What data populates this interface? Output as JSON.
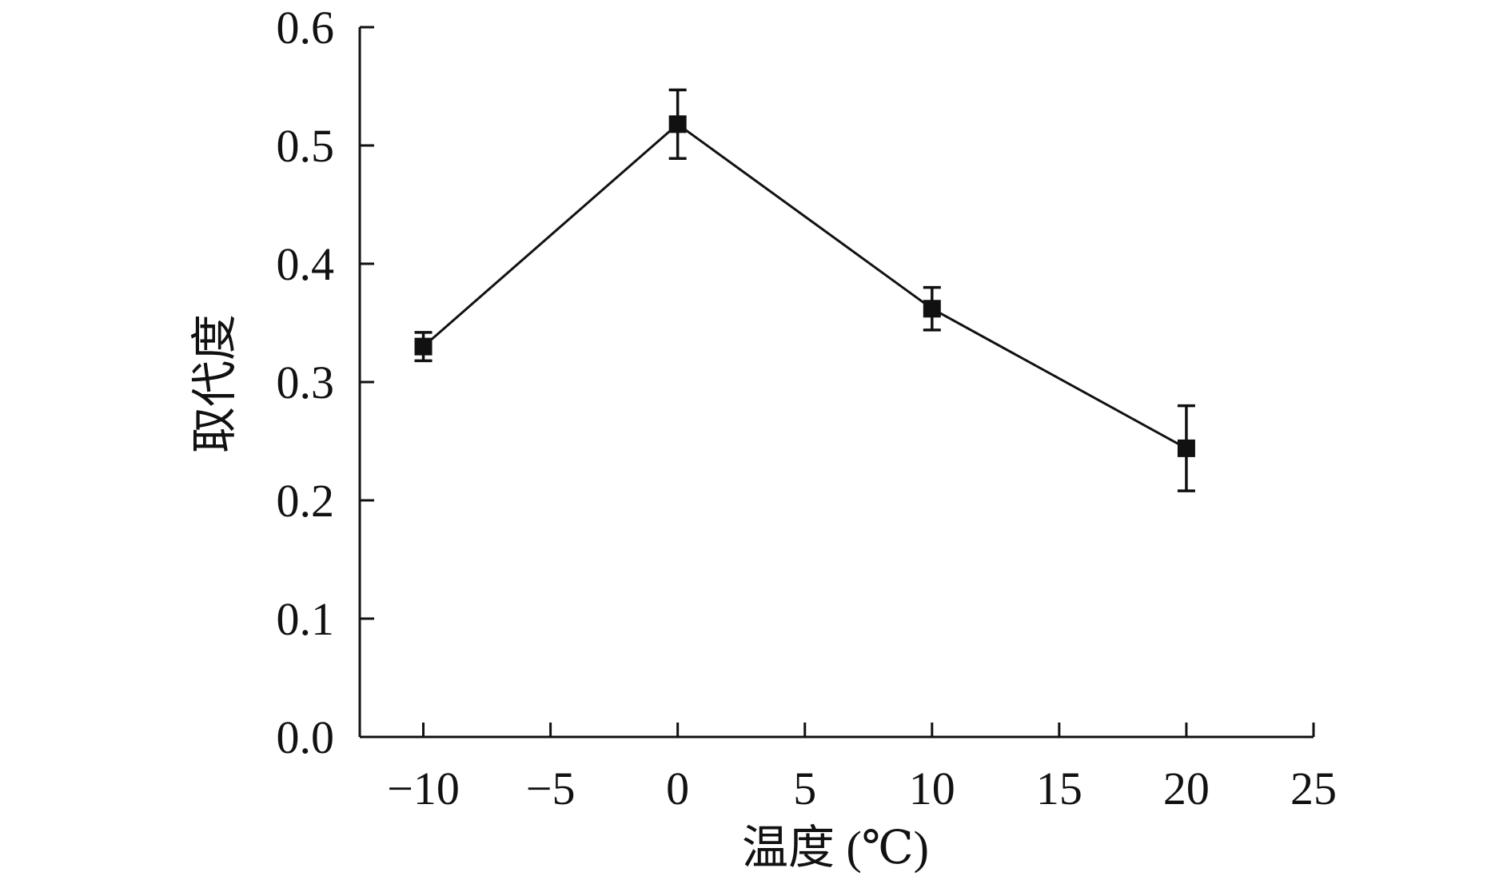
{
  "chart_data": {
    "type": "line",
    "title": "",
    "xlabel": "温度 (℃)",
    "ylabel": "取代度",
    "xlim": [
      -12.5,
      25
    ],
    "ylim": [
      0,
      0.6
    ],
    "x_ticks": [
      -10,
      -5,
      0,
      5,
      10,
      15,
      20,
      25
    ],
    "x_tick_labels": [
      "−10",
      "−5",
      "0",
      "5",
      "10",
      "15",
      "20",
      "25"
    ],
    "y_ticks": [
      0,
      0.1,
      0.2,
      0.3,
      0.4,
      0.5,
      0.6
    ],
    "y_tick_labels": [
      "0.0",
      "0.1",
      "0.2",
      "0.3",
      "0.4",
      "0.5",
      "0.6"
    ],
    "grid": false,
    "legend": "none",
    "series": [
      {
        "marker": "square",
        "color": "#111111",
        "x": [
          -10,
          0,
          10,
          20
        ],
        "y": [
          0.33,
          0.518,
          0.362,
          0.244
        ],
        "error": [
          0.012,
          0.029,
          0.018,
          0.036
        ]
      }
    ]
  }
}
